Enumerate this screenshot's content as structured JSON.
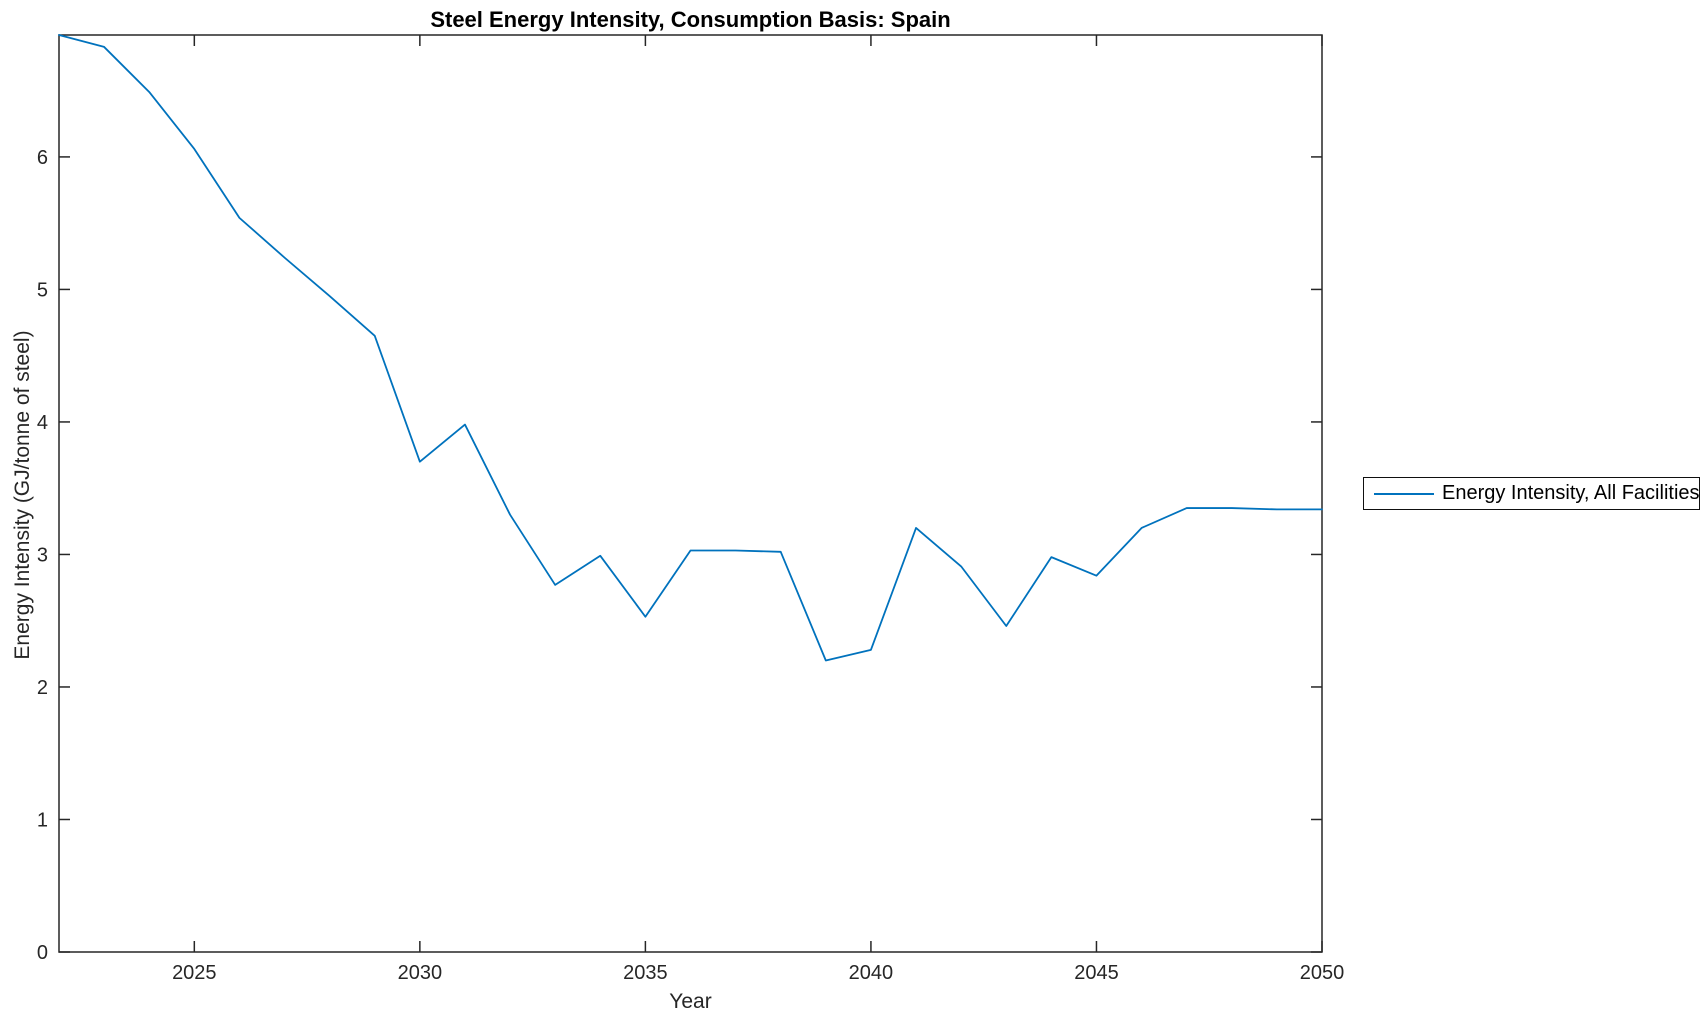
{
  "chart_data": {
    "type": "line",
    "title": "Steel Energy Intensity, Consumption Basis: Spain",
    "xlabel": "Year",
    "ylabel": "Energy Intensity (GJ/tonne of steel)",
    "legend": [
      "Energy Intensity, All Facilities"
    ],
    "legend_position": "right-outside",
    "grid": false,
    "line_color": "#0072BD",
    "axis_color": "#262626",
    "xlim": [
      2022,
      2050
    ],
    "ylim": [
      0,
      6.92
    ],
    "xticks": [
      2025,
      2030,
      2035,
      2040,
      2045,
      2050
    ],
    "yticks": [
      0,
      1,
      2,
      3,
      4,
      5,
      6
    ],
    "x": [
      2022,
      2023,
      2024,
      2025,
      2026,
      2027,
      2028,
      2029,
      2030,
      2031,
      2032,
      2033,
      2034,
      2035,
      2036,
      2037,
      2038,
      2039,
      2040,
      2041,
      2042,
      2043,
      2044,
      2045,
      2046,
      2047,
      2048,
      2049,
      2050
    ],
    "series": [
      {
        "name": "Energy Intensity, All Facilities",
        "values": [
          6.92,
          6.83,
          6.49,
          6.06,
          5.54,
          5.24,
          4.95,
          4.65,
          3.7,
          3.98,
          3.3,
          2.77,
          2.99,
          2.53,
          3.03,
          3.03,
          3.02,
          2.2,
          2.28,
          3.2,
          2.91,
          2.46,
          2.98,
          2.84,
          3.2,
          3.35,
          3.35,
          3.34,
          3.34
        ]
      }
    ]
  }
}
